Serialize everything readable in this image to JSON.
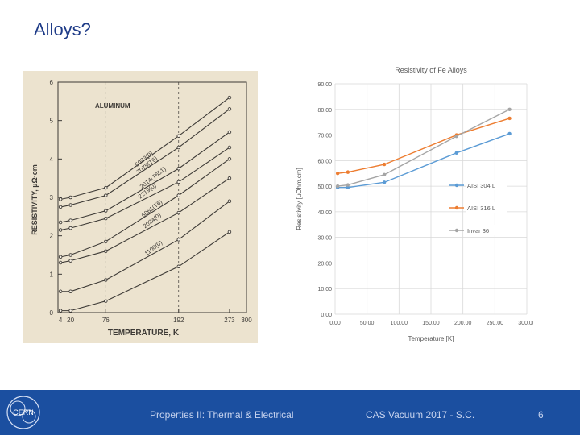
{
  "slide": {
    "title": "Alloys?",
    "footer_left": "Properties II: Thermal & Electrical",
    "footer_center": "CAS Vacuum 2017 - S.C.",
    "page_number": "6",
    "logo_text": "CERN"
  },
  "colors": {
    "title": "#1f3c88",
    "footer_bg": "#1b4fa0",
    "footer_text": "#c7d3ee",
    "series": [
      "#5b9bd5",
      "#ed7d31",
      "#a5a5a5"
    ]
  },
  "chart_data": [
    {
      "type": "line",
      "title": "ALUMINUM",
      "xlabel": "TEMPERATURE, K",
      "ylabel": "RESISTIVITY, µΩ·cm",
      "x_ticks": [
        "4",
        "20",
        "76",
        "192",
        "273",
        "300"
      ],
      "y_ticks": [
        "0",
        "1",
        "2",
        "3",
        "4",
        "5",
        "6"
      ],
      "xlim": [
        0,
        300
      ],
      "ylim": [
        0,
        6
      ],
      "series": [
        {
          "name": "5083(0)",
          "x": [
            4,
            20,
            76,
            192,
            273
          ],
          "values": [
            2.95,
            3.0,
            3.25,
            4.6,
            5.6
          ]
        },
        {
          "name": "7075(T6)",
          "x": [
            4,
            20,
            76,
            192,
            273
          ],
          "values": [
            2.75,
            2.8,
            3.05,
            4.3,
            5.3
          ]
        },
        {
          "name": "2014(T651)",
          "x": [
            4,
            20,
            76,
            192,
            273
          ],
          "values": [
            2.35,
            2.4,
            2.65,
            3.75,
            4.7
          ]
        },
        {
          "name": "2219(0)",
          "x": [
            4,
            20,
            76,
            192,
            273
          ],
          "values": [
            2.15,
            2.2,
            2.45,
            3.4,
            4.3
          ]
        },
        {
          "name": "6061(T6)",
          "x": [
            4,
            20,
            76,
            192,
            273
          ],
          "values": [
            1.45,
            1.5,
            1.85,
            3.05,
            4.0
          ]
        },
        {
          "name": "2024(0)",
          "x": [
            4,
            20,
            76,
            192,
            273
          ],
          "values": [
            1.3,
            1.35,
            1.6,
            2.6,
            3.5
          ]
        },
        {
          "name": "1100(0)",
          "x": [
            4,
            20,
            76,
            192,
            273
          ],
          "values": [
            0.55,
            0.55,
            0.85,
            1.9,
            2.9
          ]
        },
        {
          "name": "",
          "x": [
            4,
            20,
            76,
            192,
            273
          ],
          "values": [
            0.05,
            0.05,
            0.3,
            1.2,
            2.1
          ]
        }
      ],
      "curve_labels": [
        "5083(0)",
        "7075(T6)",
        "2219(0)",
        "2014(T651)",
        "6061(T6)",
        "2024(0)",
        "1100(0)"
      ]
    },
    {
      "type": "line",
      "title": "Resistivity of Fe Alloys",
      "xlabel": "Temperature [K]",
      "ylabel": "Resistivity [µOhm.cm]",
      "xlim": [
        0,
        300
      ],
      "ylim": [
        0,
        90
      ],
      "x_ticks": [
        "0.00",
        "50.00",
        "100.00",
        "150.00",
        "200.00",
        "250.00",
        "300.00"
      ],
      "y_ticks": [
        "0.00",
        "10.00",
        "20.00",
        "30.00",
        "40.00",
        "50.00",
        "60.00",
        "70.00",
        "80.00",
        "90.00"
      ],
      "grid": true,
      "legend_position": "right",
      "series": [
        {
          "name": "AISI 304 L",
          "x": [
            4,
            20,
            77,
            190,
            273
          ],
          "values": [
            49.5,
            49.5,
            51.5,
            63,
            70.5
          ]
        },
        {
          "name": "AISI 316 L",
          "x": [
            4,
            20,
            77,
            190,
            273
          ],
          "values": [
            55,
            55.5,
            58.5,
            70,
            76.5
          ]
        },
        {
          "name": "Invar 36",
          "x": [
            4,
            20,
            77,
            190,
            273
          ],
          "values": [
            50,
            50.5,
            54.5,
            69.5,
            80
          ]
        }
      ]
    }
  ]
}
